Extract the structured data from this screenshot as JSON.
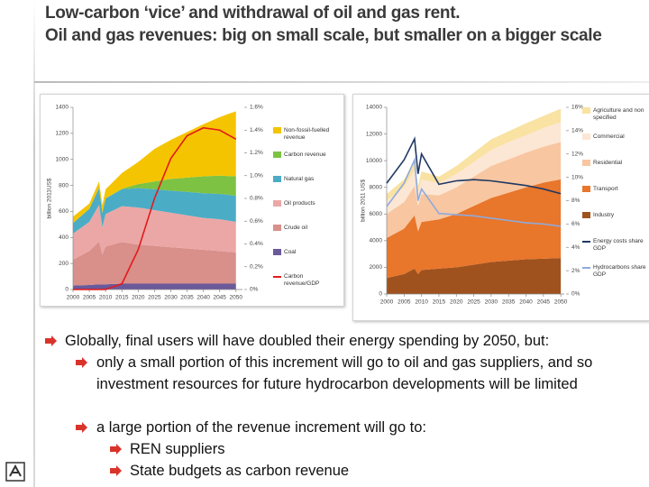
{
  "slide": {
    "title": [
      "Low-carbon ‘vice’ and withdrawal of oil and gas rent.",
      "Oil and gas revenues: big on small scale, but smaller on a bigger scale"
    ],
    "bullets": [
      {
        "level": 1,
        "text": "Globally, final users will have doubled their energy spending by 2050, but:"
      },
      {
        "level": 2,
        "text": "only a small portion of this increment will go to oil and gas suppliers, and so investment resources for future hydrocarbon developments will be limited"
      },
      {
        "level": 2,
        "text": "a large portion of the revenue increment will go to:"
      },
      {
        "level": 3,
        "text": "REN suppliers"
      },
      {
        "level": 3,
        "text": "State budgets as carbon revenue"
      }
    ]
  },
  "chart_data": [
    {
      "type": "area",
      "y_label": "billion 2011US$",
      "legend": "right",
      "x": [
        2000,
        2005,
        2008,
        2009,
        2010,
        2015,
        2020,
        2025,
        2030,
        2035,
        2040,
        2045,
        2050
      ],
      "xlim": [
        2000,
        2052
      ],
      "xticks": [
        2000,
        2005,
        2010,
        2015,
        2020,
        2025,
        2030,
        2035,
        2040,
        2045,
        2050
      ],
      "ylim": [
        0,
        1400
      ],
      "yticks": [
        0,
        200,
        400,
        600,
        800,
        1000,
        1200,
        1400
      ],
      "y2lim": [
        0,
        1.6
      ],
      "y2ticks": [
        {
          "value": 0,
          "label": "0%"
        },
        {
          "value": 0.2,
          "label": "0.2%"
        },
        {
          "value": 0.4,
          "label": "0.4%"
        },
        {
          "value": 0.6,
          "label": "0.6%"
        },
        {
          "value": 0.8,
          "label": "0.8%"
        },
        {
          "value": 1.0,
          "label": "1.0%"
        },
        {
          "value": 1.2,
          "label": "1.2%"
        },
        {
          "value": 1.4,
          "label": "1.4%"
        },
        {
          "value": 1.6,
          "label": "1.6%"
        }
      ],
      "series": [
        {
          "name": "Non-fossil-fuelled revenue",
          "color": "#f5c400",
          "values": [
            50,
            40,
            50,
            60,
            70,
            120,
            170,
            250,
            300,
            350,
            400,
            450,
            500
          ]
        },
        {
          "name": "Carbon revenue",
          "color": "#7dc242",
          "values": [
            0,
            0,
            0,
            0,
            0,
            5,
            30,
            60,
            90,
            110,
            130,
            140,
            150
          ]
        },
        {
          "name": "Natural gas",
          "color": "#4bacc6",
          "values": [
            80,
            100,
            130,
            110,
            120,
            130,
            150,
            160,
            170,
            180,
            190,
            195,
            200
          ]
        },
        {
          "name": "Oil products",
          "color": "#eba7a5",
          "values": [
            200,
            225,
            280,
            212,
            250,
            275,
            285,
            275,
            265,
            255,
            245,
            245,
            235
          ]
        },
        {
          "name": "Crude oil",
          "color": "#d98f8a",
          "values": [
            200,
            260,
            330,
            230,
            290,
            320,
            300,
            290,
            280,
            270,
            260,
            250,
            240
          ]
        },
        {
          "name": "Coal",
          "color": "#6a5a9a",
          "values": [
            30,
            35,
            40,
            38,
            40,
            45,
            45,
            45,
            45,
            45,
            45,
            45,
            45
          ]
        },
        {
          "name": "Carbon revenue/GDP",
          "color": "#e31a1c",
          "axis": "y2",
          "values": [
            0,
            0,
            0,
            0,
            0,
            0.05,
            0.35,
            0.8,
            1.15,
            1.35,
            1.42,
            1.4,
            1.32
          ]
        }
      ]
    },
    {
      "type": "area",
      "y_label": "billion 2011 US$",
      "legend": "right",
      "x": [
        2000,
        2005,
        2008,
        2009,
        2010,
        2015,
        2020,
        2025,
        2030,
        2035,
        2040,
        2045,
        2050
      ],
      "xlim": [
        2000,
        2051
      ],
      "xticks": [
        2000,
        2005,
        2010,
        2015,
        2020,
        2025,
        2030,
        2035,
        2040,
        2045,
        2050
      ],
      "ylim": [
        0,
        14000
      ],
      "yticks": [
        0,
        2000,
        4000,
        6000,
        8000,
        10000,
        12000,
        14000
      ],
      "y2lim": [
        0,
        16
      ],
      "y2ticks": [
        {
          "value": 0,
          "label": "0%"
        },
        {
          "value": 2,
          "label": "2%"
        },
        {
          "value": 4,
          "label": "4%"
        },
        {
          "value": 6,
          "label": "6%"
        },
        {
          "value": 8,
          "label": "8%"
        },
        {
          "value": 10,
          "label": "10%"
        },
        {
          "value": 12,
          "label": "12%"
        },
        {
          "value": 14,
          "label": "14%"
        },
        {
          "value": 16,
          "label": "16%"
        }
      ],
      "series": [
        {
          "name": "Agriculture and non specified",
          "color": "#f9e2a2",
          "values": [
            500,
            600,
            700,
            500,
            600,
            500,
            600,
            700,
            800,
            800,
            900,
            900,
            1000
          ]
        },
        {
          "name": "Commercial",
          "color": "#fce6d4",
          "values": [
            1000,
            1100,
            1200,
            1000,
            1100,
            900,
            1000,
            1100,
            1200,
            1300,
            1300,
            1400,
            1500
          ]
        },
        {
          "name": "Residential",
          "color": "#f8c6a0",
          "values": [
            1800,
            2000,
            2200,
            1900,
            2100,
            1800,
            2000,
            2200,
            2400,
            2500,
            2600,
            2700,
            2800
          ]
        },
        {
          "name": "Transport",
          "color": "#e8762b",
          "values": [
            3000,
            3400,
            4000,
            3200,
            3600,
            3700,
            4000,
            4400,
            4800,
            5100,
            5400,
            5700,
            5900
          ]
        },
        {
          "name": "Industry",
          "color": "#a0521e",
          "values": [
            1200,
            1500,
            1900,
            1500,
            1800,
            1900,
            2000,
            2200,
            2400,
            2500,
            2600,
            2650,
            2700
          ]
        },
        {
          "name": "Energy costs share GDP",
          "color": "#1f3864",
          "axis": "y2",
          "values": [
            9.5,
            11.5,
            13.3,
            10.3,
            12,
            9.4,
            9.7,
            9.8,
            9.7,
            9.5,
            9.3,
            9,
            8.6
          ]
        },
        {
          "name": "Hydrocarbons share GDP",
          "color": "#8faadc",
          "axis": "y2",
          "values": [
            7.5,
            9.5,
            11.5,
            8,
            9,
            6.9,
            6.8,
            6.7,
            6.5,
            6.3,
            6.1,
            6,
            5.8
          ]
        }
      ]
    }
  ]
}
